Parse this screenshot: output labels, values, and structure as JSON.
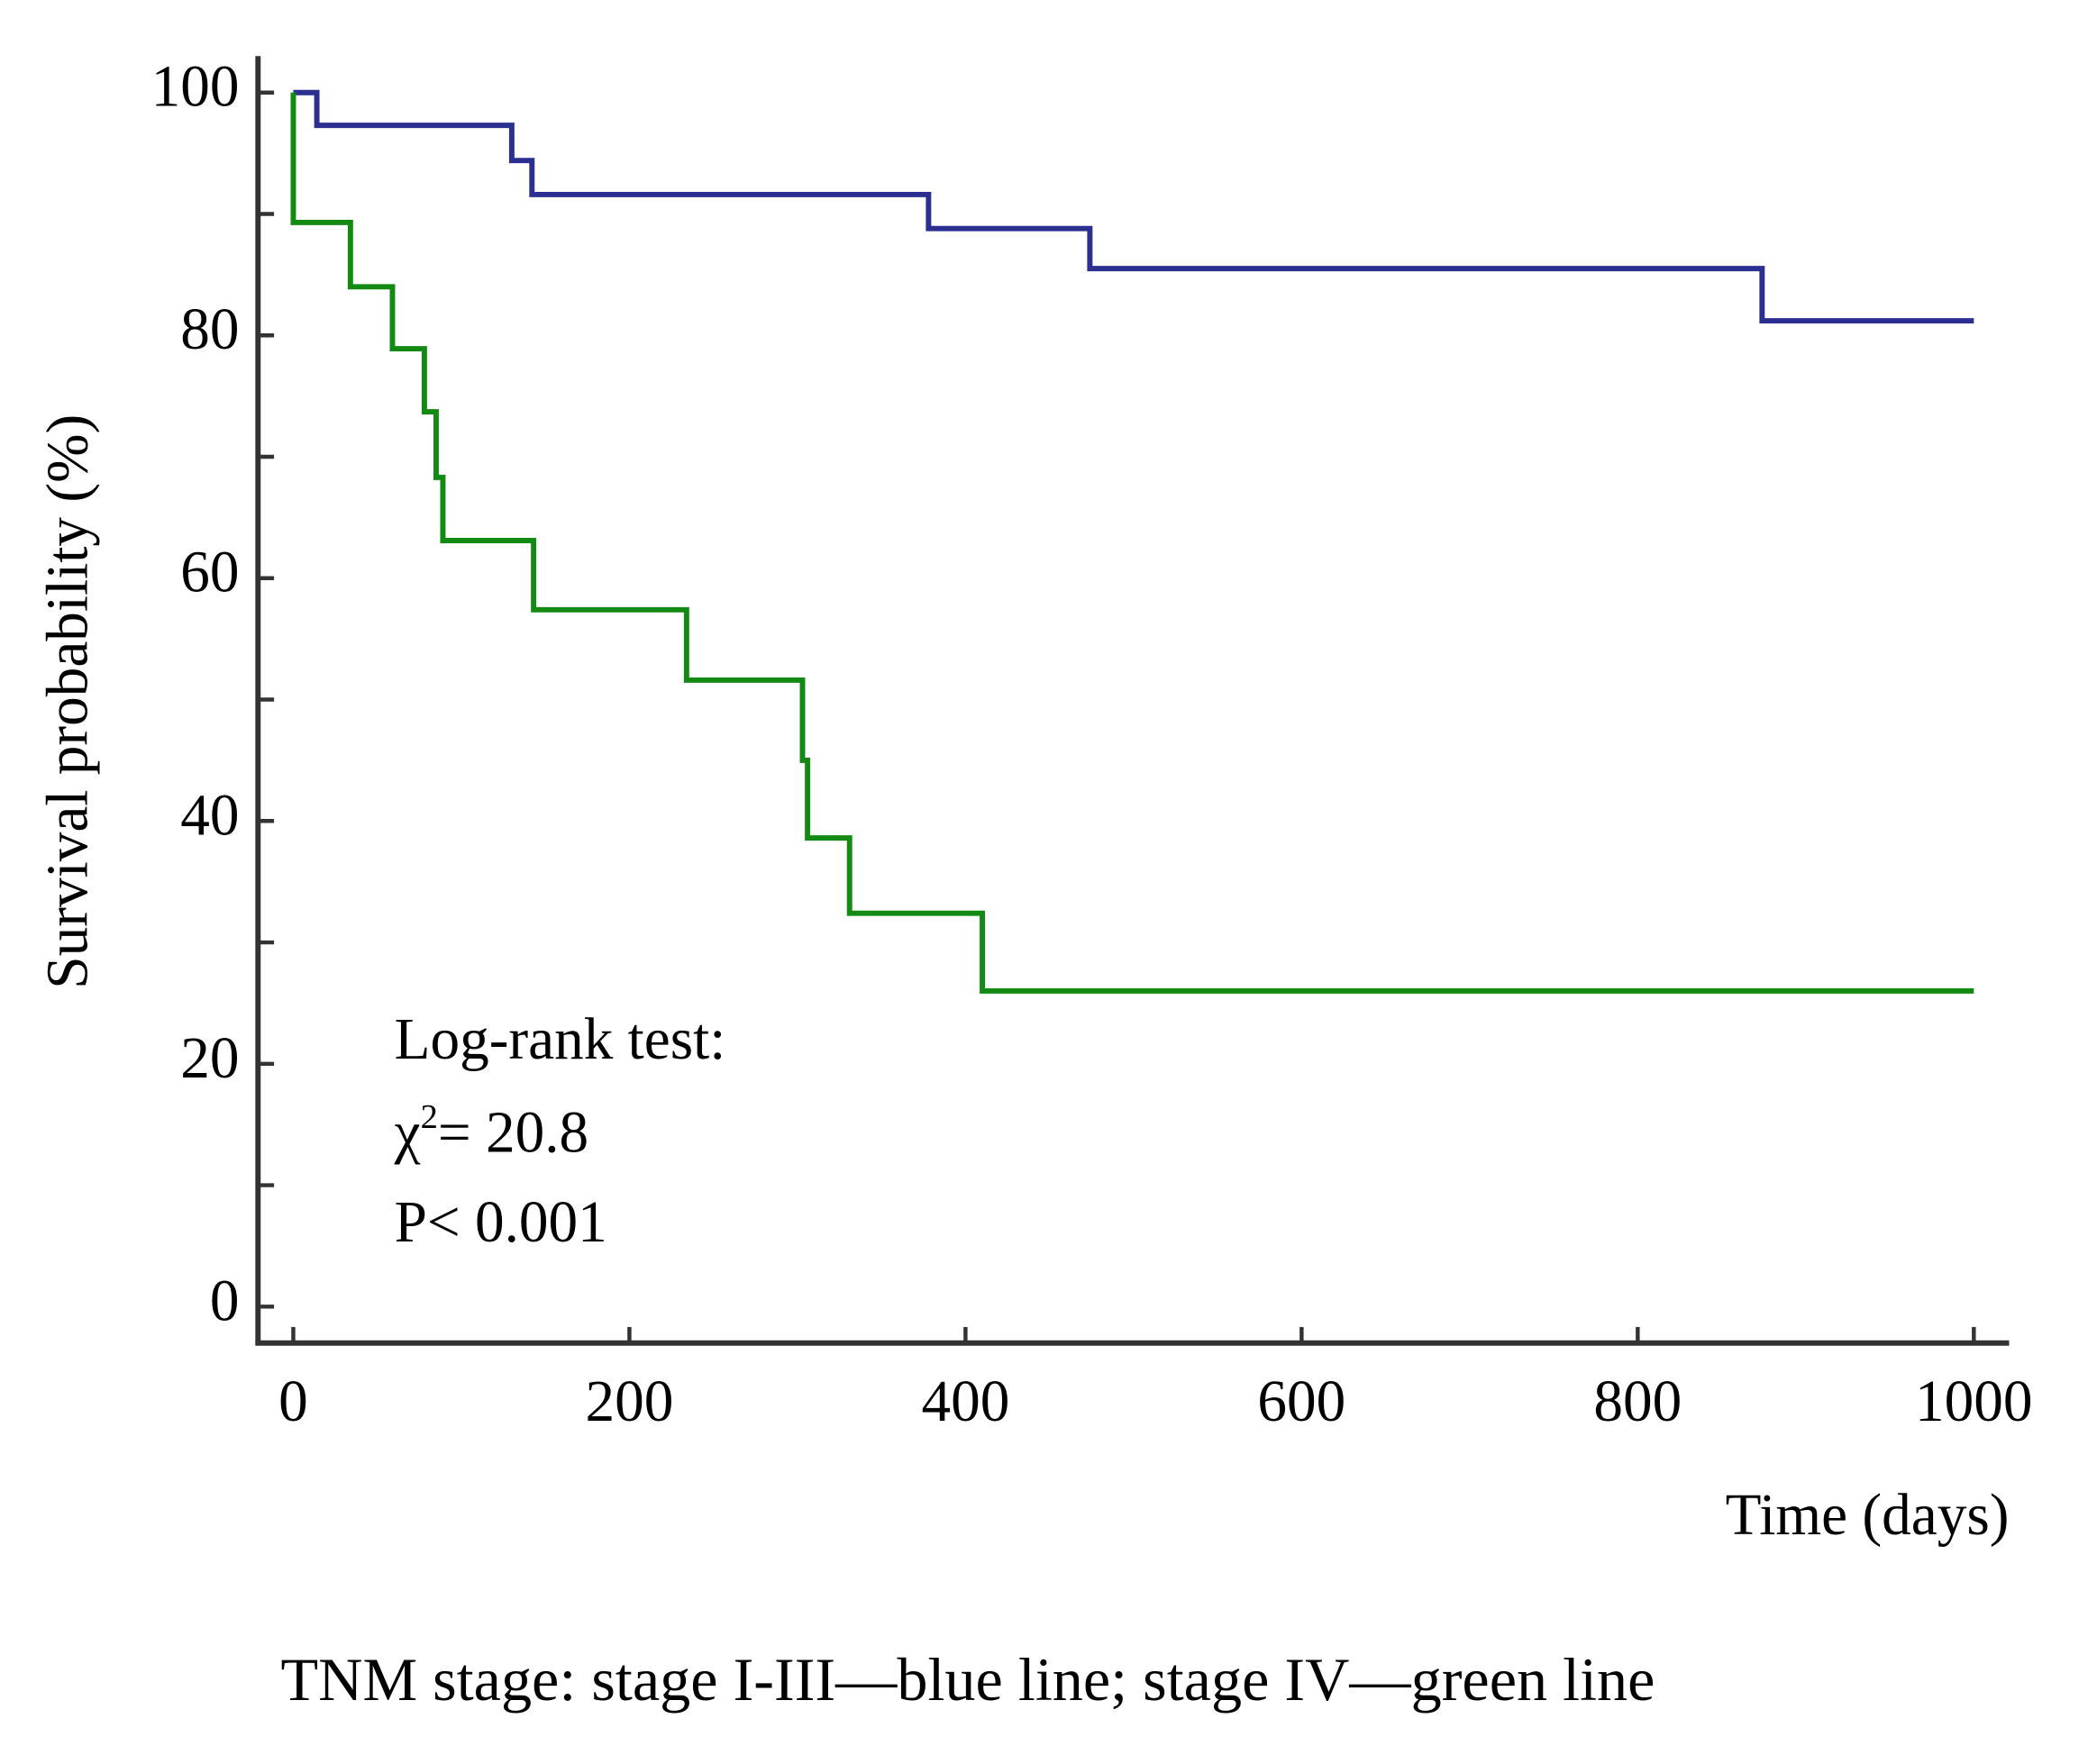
{
  "chart_data": {
    "type": "step",
    "x_label": "Time (days)",
    "y_label": "Survival probability (%)",
    "series": [
      {
        "color": "#2b2f8f",
        "x": [
          0,
          14,
          130,
          142,
          378,
          474,
          874,
          1000
        ],
        "values": [
          100,
          97.3,
          94.4,
          91.6,
          88.8,
          85.5,
          81.2,
          81.2
        ]
      },
      {
        "color": "#138a13",
        "x": [
          0,
          0,
          34,
          59,
          78,
          85,
          89,
          143,
          234,
          303,
          306,
          331,
          410,
          1000
        ],
        "values": [
          100,
          89.3,
          84,
          78.9,
          73.7,
          68.3,
          63.1,
          57.4,
          51.6,
          45,
          38.6,
          32.4,
          26,
          26
        ]
      }
    ],
    "xlim": [
      -21,
      1021
    ],
    "xticks": [
      0,
      200,
      400,
      600,
      800,
      1000
    ],
    "ylim": [
      -3,
      103
    ],
    "yticks": [
      0,
      20,
      40,
      60,
      80,
      100
    ],
    "yminorticks": [
      10,
      30,
      50,
      70,
      90
    ],
    "annotations": [
      "Log-rank test:",
      "χ",
      "2",
      "= 20.8",
      "P< 0.001"
    ],
    "caption": "TNM stage: stage I-III—blue line; stage IV—green line"
  }
}
